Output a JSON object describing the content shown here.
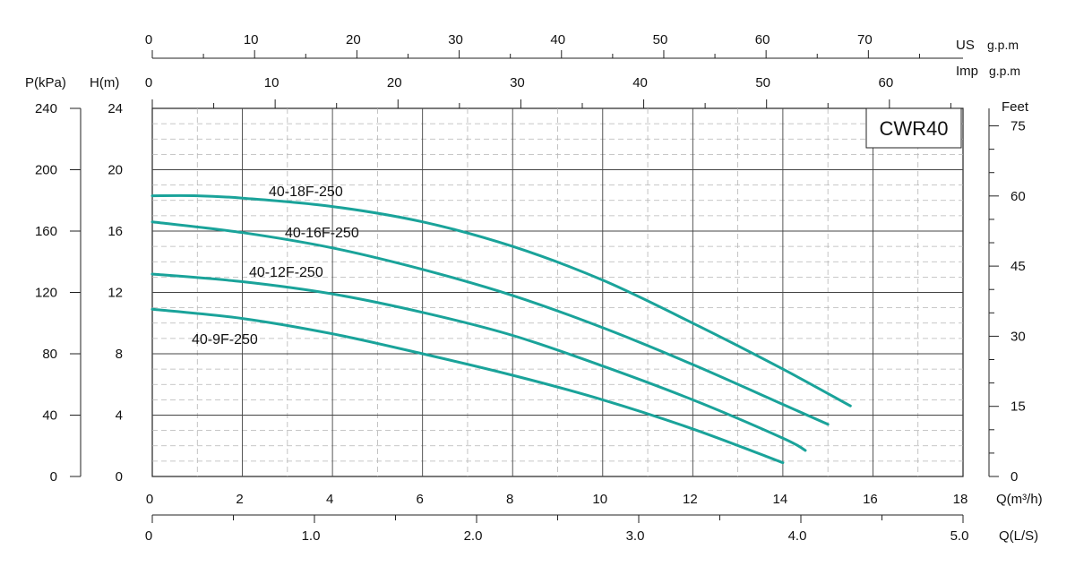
{
  "chart_data": {
    "type": "line",
    "title": "CWR40",
    "x_primary": {
      "label": "Q(m³/h)",
      "range": [
        0,
        18
      ],
      "ticks": [
        "0",
        "2",
        "4",
        "6",
        "8",
        "10",
        "12",
        "14",
        "16",
        "18"
      ]
    },
    "x_us_gpm": {
      "label_prefix": "US",
      "label_unit": "g.p.m",
      "range_m3h": [
        0,
        18
      ],
      "ticks": [
        [
          "0",
          0
        ],
        [
          "10",
          10
        ],
        [
          "20",
          20
        ],
        [
          "30",
          30
        ],
        [
          "40",
          40
        ],
        [
          "50",
          50
        ],
        [
          "60",
          60
        ],
        [
          "70",
          70
        ]
      ]
    },
    "x_imp_gpm": {
      "label_prefix": "Imp",
      "label_unit": "g.p.m",
      "ticks": [
        [
          "0",
          0
        ],
        [
          "10",
          10
        ],
        [
          "20",
          20
        ],
        [
          "30",
          30
        ],
        [
          "40",
          40
        ],
        [
          "50",
          50
        ],
        [
          "60",
          60
        ]
      ]
    },
    "x_ls": {
      "label": "Q(L/S)",
      "range": [
        0,
        5
      ],
      "ticks": [
        "0",
        "1.0",
        "2.0",
        "3.0",
        "4.0",
        "5.0"
      ]
    },
    "y_primary": {
      "label": "H(m)",
      "range": [
        0,
        24
      ],
      "ticks": [
        "0",
        "4",
        "8",
        "12",
        "16",
        "20",
        "24"
      ]
    },
    "y_kpa": {
      "label": "P(kPa)",
      "ticks": [
        "0",
        "40",
        "80",
        "120",
        "160",
        "200",
        "240"
      ]
    },
    "y_feet": {
      "label": "Feet",
      "ticks": [
        [
          "0",
          0
        ],
        [
          "15",
          15
        ],
        [
          "30",
          30
        ],
        [
          "45",
          45
        ],
        [
          "60",
          60
        ],
        [
          "75",
          75
        ]
      ]
    },
    "grid": true,
    "line_color": "#1aa39a",
    "series": [
      {
        "name": "40-18F-250",
        "points": [
          [
            0,
            18.3
          ],
          [
            1,
            18.3
          ],
          [
            2,
            18.15
          ],
          [
            4,
            17.6
          ],
          [
            6,
            16.6
          ],
          [
            8,
            15.0
          ],
          [
            10,
            12.8
          ],
          [
            12,
            10.0
          ],
          [
            14,
            7.0
          ],
          [
            15.5,
            4.6
          ]
        ]
      },
      {
        "name": "40-16F-250",
        "points": [
          [
            0,
            16.6
          ],
          [
            2,
            15.9
          ],
          [
            4,
            14.9
          ],
          [
            6,
            13.5
          ],
          [
            8,
            11.8
          ],
          [
            10,
            9.7
          ],
          [
            12,
            7.3
          ],
          [
            14,
            4.7
          ],
          [
            15,
            3.4
          ]
        ]
      },
      {
        "name": "40-12F-250",
        "points": [
          [
            0,
            13.2
          ],
          [
            2,
            12.7
          ],
          [
            4,
            11.9
          ],
          [
            6,
            10.7
          ],
          [
            8,
            9.2
          ],
          [
            10,
            7.2
          ],
          [
            12,
            5.0
          ],
          [
            14,
            2.5
          ],
          [
            14.5,
            1.7
          ]
        ]
      },
      {
        "name": "40-9F-250",
        "points": [
          [
            0,
            10.9
          ],
          [
            2,
            10.3
          ],
          [
            4,
            9.3
          ],
          [
            6,
            8.0
          ],
          [
            8,
            6.6
          ],
          [
            10,
            5.0
          ],
          [
            12,
            3.1
          ],
          [
            14,
            0.9
          ]
        ]
      }
    ]
  }
}
